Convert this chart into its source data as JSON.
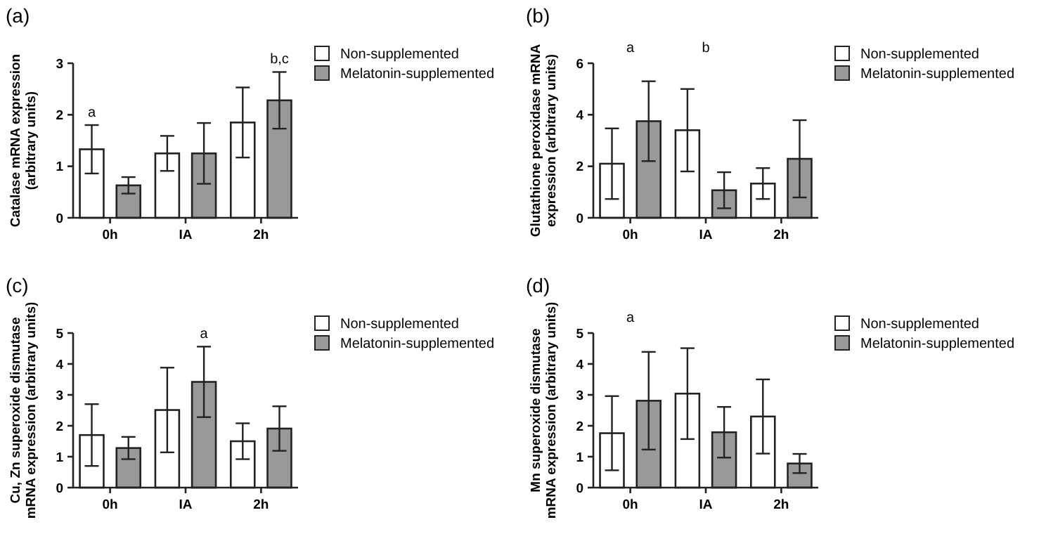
{
  "chart_data": [
    {
      "type": "bar",
      "title": "(a)",
      "ylabel": "Catalase mRNA expression (arbitrary units)",
      "categories": [
        "0h",
        "IA",
        "2h"
      ],
      "ylim": [
        0,
        3
      ],
      "yticks": [
        0,
        1,
        2,
        3
      ],
      "legend": "right",
      "annotations": [
        {
          "text": "a",
          "x": "0h",
          "y": 1.33
        },
        {
          "text": "b,c",
          "x": "2h",
          "y": 2.28
        }
      ],
      "series": [
        {
          "name": "Non-supplemented",
          "color": "#ffffff",
          "values": [
            1.33,
            1.25,
            1.85
          ],
          "errors": [
            0.47,
            0.34,
            0.68
          ]
        },
        {
          "name": "Melatonin-supplemented",
          "color": "#999999",
          "values": [
            0.63,
            1.25,
            2.28
          ],
          "errors": [
            0.16,
            0.59,
            0.55
          ]
        }
      ]
    },
    {
      "type": "bar",
      "title": "(b)",
      "ylabel": "Glutathione peroxidase mRNA expression (arbitrary units)",
      "categories": [
        "0h",
        "IA",
        "2h"
      ],
      "ylim": [
        0,
        6
      ],
      "yticks": [
        0,
        2,
        4,
        6
      ],
      "legend": "right",
      "annotations": [
        "a",
        "b"
      ],
      "series": [
        {
          "name": "Non-supplemented",
          "color": "#ffffff",
          "values": [
            2.1,
            3.4,
            1.33
          ],
          "errors": [
            1.37,
            1.6,
            0.6
          ]
        },
        {
          "name": "Melatonin-supplemented",
          "color": "#999999",
          "values": [
            3.75,
            1.07,
            2.29
          ],
          "errors": [
            1.55,
            0.7,
            1.5
          ]
        }
      ]
    },
    {
      "type": "bar",
      "title": "(c)",
      "ylabel": "Cu, Zn superoxide dismutase mRNA expression (arbitrary units)",
      "categories": [
        "0h",
        "IA",
        "2h"
      ],
      "ylim": [
        0,
        5
      ],
      "yticks": [
        0,
        1,
        2,
        3,
        4,
        5
      ],
      "legend": "right",
      "annotations": [
        {
          "text": "a",
          "x": "IA",
          "y": 3.42
        }
      ],
      "series": [
        {
          "name": "Non-supplemented",
          "color": "#ffffff",
          "values": [
            1.7,
            2.51,
            1.5
          ],
          "errors": [
            1.0,
            1.37,
            0.58
          ]
        },
        {
          "name": "Melatonin-supplemented",
          "color": "#999999",
          "values": [
            1.28,
            3.42,
            1.91
          ],
          "errors": [
            0.36,
            1.14,
            0.72
          ]
        }
      ]
    },
    {
      "type": "bar",
      "title": "(d)",
      "ylabel": "Mn superoxide dismutase mRNA expression (arbitrary units)",
      "categories": [
        "0h",
        "IA",
        "2h"
      ],
      "ylim": [
        0,
        5
      ],
      "yticks": [
        0,
        1,
        2,
        3,
        4,
        5
      ],
      "legend": "right",
      "annotations": [
        "a"
      ],
      "series": [
        {
          "name": "Non-supplemented",
          "color": "#ffffff",
          "values": [
            1.76,
            3.04,
            2.3
          ],
          "errors": [
            1.2,
            1.47,
            1.2
          ]
        },
        {
          "name": "Melatonin-supplemented",
          "color": "#999999",
          "values": [
            2.81,
            1.79,
            0.78
          ],
          "errors": [
            1.58,
            0.82,
            0.31
          ]
        }
      ]
    }
  ]
}
